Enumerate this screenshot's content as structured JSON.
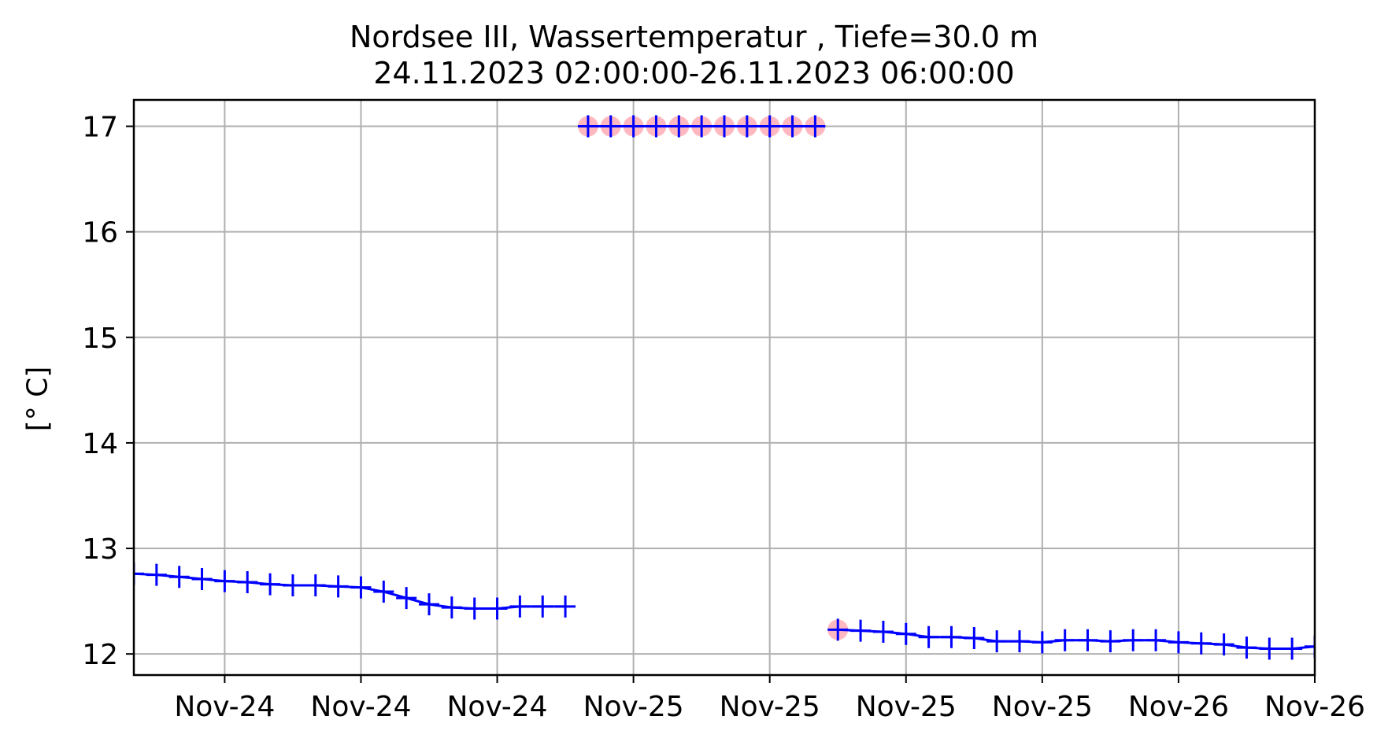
{
  "title": "Nordsee III, Wassertemperatur , Tiefe=30.0 m",
  "subtitle": "24.11.2023 02:00:00-26.11.2023 06:00:00",
  "ylabel": "[° C]",
  "chart_data": {
    "type": "line",
    "title": "Nordsee III, Wassertemperatur , Tiefe=30.0 m",
    "subtitle": "24.11.2023 02:00:00-26.11.2023 06:00:00",
    "xlabel": "",
    "ylabel": "[° C]",
    "xlim": [
      "2023-11-24 02:00",
      "2023-11-26 06:00"
    ],
    "ylim": [
      11.8,
      17.25
    ],
    "yticks": [
      12,
      13,
      14,
      15,
      16,
      17
    ],
    "xticks": [
      {
        "x": "2023-11-24 06:00",
        "label": "Nov-24"
      },
      {
        "x": "2023-11-24 12:00",
        "label": "Nov-24"
      },
      {
        "x": "2023-11-24 18:00",
        "label": "Nov-24"
      },
      {
        "x": "2023-11-25 00:00",
        "label": "Nov-25"
      },
      {
        "x": "2023-11-25 06:00",
        "label": "Nov-25"
      },
      {
        "x": "2023-11-25 12:00",
        "label": "Nov-25"
      },
      {
        "x": "2023-11-25 18:00",
        "label": "Nov-25"
      },
      {
        "x": "2023-11-26 00:00",
        "label": "Nov-26"
      },
      {
        "x": "2023-11-26 06:00",
        "label": "Nov-26"
      }
    ],
    "grid": true,
    "line_color": "#0000ff",
    "flag_color": "#ffb0b8",
    "series": [
      {
        "style": "line-with-plus-markers",
        "x": [
          "2023-11-24 02:00",
          "2023-11-24 03:00",
          "2023-11-24 04:00",
          "2023-11-24 05:00",
          "2023-11-24 06:00",
          "2023-11-24 07:00",
          "2023-11-24 08:00",
          "2023-11-24 09:00",
          "2023-11-24 10:00",
          "2023-11-24 11:00",
          "2023-11-24 12:00",
          "2023-11-24 13:00",
          "2023-11-24 14:00",
          "2023-11-24 15:00",
          "2023-11-24 16:00",
          "2023-11-24 17:00",
          "2023-11-24 18:00",
          "2023-11-24 19:00",
          "2023-11-24 20:00",
          "2023-11-24 21:00"
        ],
        "y": [
          12.76,
          12.75,
          12.73,
          12.71,
          12.69,
          12.68,
          12.66,
          12.65,
          12.65,
          12.64,
          12.63,
          12.59,
          12.53,
          12.47,
          12.44,
          12.43,
          12.43,
          12.45,
          12.45,
          12.45
        ]
      },
      {
        "style": "flagged-plus-markers",
        "x": [
          "2023-11-24 22:00",
          "2023-11-24 23:00",
          "2023-11-25 00:00",
          "2023-11-25 01:00",
          "2023-11-25 02:00",
          "2023-11-25 03:00",
          "2023-11-25 04:00",
          "2023-11-25 05:00",
          "2023-11-25 06:00",
          "2023-11-25 07:00",
          "2023-11-25 08:00"
        ],
        "y": [
          17.0,
          17.0,
          17.0,
          17.0,
          17.0,
          17.0,
          17.0,
          17.0,
          17.0,
          17.0,
          17.0
        ]
      },
      {
        "style": "line-with-plus-markers",
        "flagged_first": true,
        "x": [
          "2023-11-25 09:00",
          "2023-11-25 10:00",
          "2023-11-25 11:00",
          "2023-11-25 12:00",
          "2023-11-25 13:00",
          "2023-11-25 14:00",
          "2023-11-25 15:00",
          "2023-11-25 16:00",
          "2023-11-25 17:00",
          "2023-11-25 18:00",
          "2023-11-25 19:00",
          "2023-11-25 20:00",
          "2023-11-25 21:00",
          "2023-11-25 22:00",
          "2023-11-25 23:00",
          "2023-11-26 00:00",
          "2023-11-26 01:00",
          "2023-11-26 02:00",
          "2023-11-26 03:00",
          "2023-11-26 04:00",
          "2023-11-26 05:00",
          "2023-11-26 06:00"
        ],
        "y": [
          12.23,
          12.22,
          12.21,
          12.19,
          12.16,
          12.16,
          12.15,
          12.12,
          12.12,
          12.11,
          12.13,
          12.13,
          12.12,
          12.13,
          12.13,
          12.11,
          12.1,
          12.09,
          12.06,
          12.05,
          12.05,
          12.07
        ]
      }
    ]
  }
}
